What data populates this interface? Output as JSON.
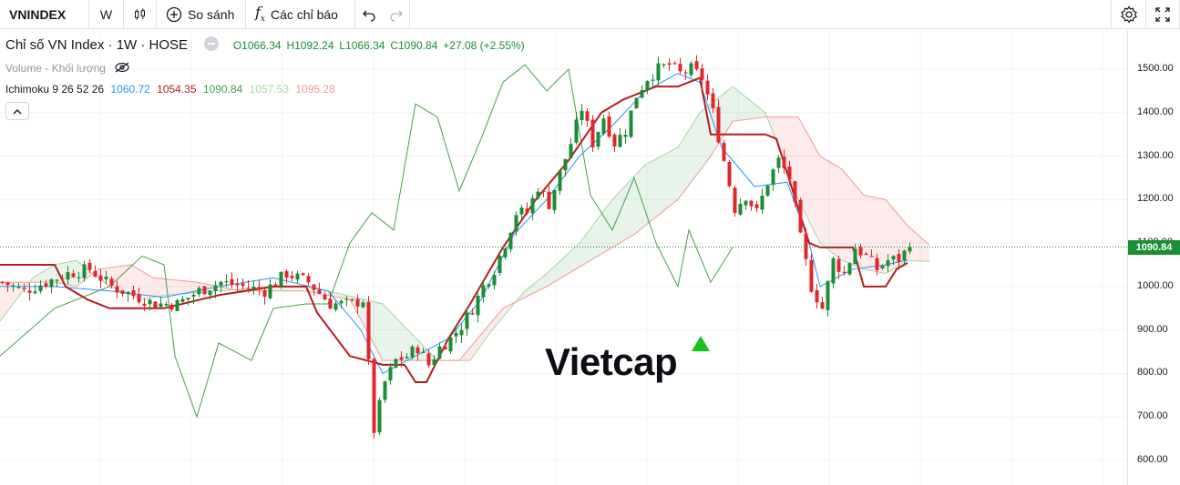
{
  "toolbar": {
    "symbol": "VNINDEX",
    "interval": "W",
    "compare_label": "So sánh",
    "indicators_label": "Các chỉ báo"
  },
  "legend": {
    "title": "Chỉ số VN Index · 1W · HOSE",
    "open": "O1066.34",
    "high": "H1092.24",
    "low": "L1066.34",
    "close": "C1090.84",
    "change": "+27.08 (+2.55%)",
    "volume_label": "Volume - Khối lượng",
    "ichimoku_label": "Ichimoku 9 26 52 26",
    "ichimoku_values": [
      "1060.72",
      "1054.35",
      "1090.84",
      "1057.53",
      "1095.28"
    ]
  },
  "watermark": "Vietcap",
  "colors": {
    "up": "#1a8e32",
    "down": "#e3262a",
    "conversion": "#2196f3",
    "base": "#b71c1c",
    "lagging": "#43a047",
    "span_a": "#a5d6a7",
    "span_b": "#ef9a9a",
    "green_text": "#1a8e32"
  },
  "chart_data": {
    "type": "candlestick",
    "symbol": "VNINDEX",
    "interval": "1W",
    "y_ticks": [
      "1500.00",
      "1400.00",
      "1300.00",
      "1200.00",
      "1100.00",
      "1000.00",
      "900.00",
      "800.00",
      "700.00",
      "600.00"
    ],
    "ylim": [
      575,
      1560
    ],
    "last_price": "1090.84",
    "close_path": [
      [
        0,
        1010
      ],
      [
        4,
        990
      ],
      [
        8,
        1010
      ],
      [
        12,
        1030
      ],
      [
        16,
        1040
      ],
      [
        20,
        1000
      ],
      [
        24,
        980
      ],
      [
        28,
        960
      ],
      [
        32,
        960
      ],
      [
        36,
        990
      ],
      [
        40,
        1010
      ],
      [
        44,
        1000
      ],
      [
        48,
        990
      ],
      [
        52,
        1030
      ],
      [
        56,
        1010
      ],
      [
        60,
        960
      ],
      [
        64,
        960
      ],
      [
        66,
        970
      ],
      [
        68,
        670
      ],
      [
        70,
        780
      ],
      [
        72,
        830
      ],
      [
        74,
        840
      ],
      [
        76,
        860
      ],
      [
        78,
        820
      ],
      [
        80,
        860
      ],
      [
        82,
        880
      ],
      [
        84,
        910
      ],
      [
        86,
        950
      ],
      [
        88,
        1000
      ],
      [
        90,
        1040
      ],
      [
        92,
        1100
      ],
      [
        94,
        1170
      ],
      [
        96,
        1170
      ],
      [
        98,
        1230
      ],
      [
        100,
        1190
      ],
      [
        102,
        1260
      ],
      [
        104,
        1330
      ],
      [
        106,
        1410
      ],
      [
        108,
        1330
      ],
      [
        110,
        1390
      ],
      [
        112,
        1330
      ],
      [
        114,
        1360
      ],
      [
        116,
        1440
      ],
      [
        118,
        1480
      ],
      [
        120,
        1500
      ],
      [
        122,
        1510
      ],
      [
        124,
        1490
      ],
      [
        126,
        1500
      ],
      [
        128,
        1480
      ],
      [
        130,
        1400
      ],
      [
        132,
        1290
      ],
      [
        134,
        1180
      ],
      [
        136,
        1210
      ],
      [
        138,
        1170
      ],
      [
        140,
        1240
      ],
      [
        142,
        1290
      ],
      [
        144,
        1250
      ],
      [
        146,
        1110
      ],
      [
        148,
        1000
      ],
      [
        150,
        950
      ],
      [
        152,
        1060
      ],
      [
        154,
        1030
      ],
      [
        156,
        1090
      ],
      [
        158,
        1070
      ],
      [
        160,
        1040
      ],
      [
        162,
        1060
      ],
      [
        164,
        1063
      ],
      [
        166,
        1091
      ]
    ],
    "conversion_line": [
      [
        0,
        1000
      ],
      [
        10,
        1000
      ],
      [
        20,
        990
      ],
      [
        30,
        975
      ],
      [
        40,
        1000
      ],
      [
        50,
        1020
      ],
      [
        60,
        990
      ],
      [
        66,
        900
      ],
      [
        70,
        800
      ],
      [
        76,
        840
      ],
      [
        82,
        880
      ],
      [
        88,
        970
      ],
      [
        94,
        1120
      ],
      [
        100,
        1200
      ],
      [
        106,
        1300
      ],
      [
        112,
        1370
      ],
      [
        118,
        1450
      ],
      [
        124,
        1490
      ],
      [
        128,
        1470
      ],
      [
        132,
        1320
      ],
      [
        138,
        1230
      ],
      [
        144,
        1240
      ],
      [
        148,
        1100
      ],
      [
        150,
        1000
      ],
      [
        156,
        1040
      ],
      [
        162,
        1050
      ],
      [
        166,
        1060.72
      ]
    ],
    "base_line": [
      [
        0,
        1050
      ],
      [
        10,
        1050
      ],
      [
        12,
        1000
      ],
      [
        16,
        970
      ],
      [
        20,
        950
      ],
      [
        30,
        950
      ],
      [
        40,
        980
      ],
      [
        50,
        1000
      ],
      [
        56,
        1000
      ],
      [
        58,
        940
      ],
      [
        64,
        840
      ],
      [
        70,
        820
      ],
      [
        74,
        820
      ],
      [
        76,
        780
      ],
      [
        78,
        780
      ],
      [
        82,
        880
      ],
      [
        86,
        960
      ],
      [
        92,
        1090
      ],
      [
        98,
        1200
      ],
      [
        104,
        1290
      ],
      [
        110,
        1400
      ],
      [
        114,
        1430
      ],
      [
        120,
        1460
      ],
      [
        124,
        1460
      ],
      [
        128,
        1480
      ],
      [
        130,
        1350
      ],
      [
        140,
        1350
      ],
      [
        142,
        1340
      ],
      [
        148,
        1100
      ],
      [
        150,
        1090
      ],
      [
        156,
        1090
      ],
      [
        158,
        1000
      ],
      [
        162,
        1000
      ],
      [
        164,
        1040
      ],
      [
        166,
        1054.35
      ]
    ],
    "lagging_span": [
      [
        0,
        840
      ],
      [
        10,
        950
      ],
      [
        20,
        1000
      ],
      [
        26,
        1070
      ],
      [
        30,
        1050
      ],
      [
        32,
        840
      ],
      [
        36,
        700
      ],
      [
        40,
        870
      ],
      [
        46,
        830
      ],
      [
        50,
        950
      ],
      [
        56,
        960
      ],
      [
        60,
        960
      ],
      [
        64,
        1100
      ],
      [
        68,
        1170
      ],
      [
        72,
        1130
      ],
      [
        76,
        1420
      ],
      [
        80,
        1390
      ],
      [
        84,
        1220
      ],
      [
        88,
        1340
      ],
      [
        92,
        1470
      ],
      [
        96,
        1510
      ],
      [
        100,
        1450
      ],
      [
        104,
        1500
      ],
      [
        108,
        1210
      ],
      [
        112,
        1130
      ],
      [
        116,
        1250
      ],
      [
        120,
        1100
      ],
      [
        124,
        1000
      ],
      [
        126,
        1130
      ],
      [
        130,
        1010
      ],
      [
        134,
        1090
      ]
    ],
    "leading_span_a": [
      [
        0,
        920
      ],
      [
        6,
        1020
      ],
      [
        10,
        1050
      ],
      [
        14,
        1060
      ],
      [
        20,
        1000
      ],
      [
        26,
        970
      ],
      [
        30,
        980
      ],
      [
        40,
        990
      ],
      [
        50,
        1000
      ],
      [
        56,
        1000
      ],
      [
        60,
        990
      ],
      [
        70,
        960
      ],
      [
        80,
        830
      ],
      [
        86,
        830
      ],
      [
        90,
        900
      ],
      [
        96,
        990
      ],
      [
        100,
        1030
      ],
      [
        106,
        1100
      ],
      [
        112,
        1200
      ],
      [
        118,
        1280
      ],
      [
        124,
        1320
      ],
      [
        128,
        1400
      ],
      [
        134,
        1460
      ],
      [
        140,
        1400
      ],
      [
        146,
        1200
      ],
      [
        150,
        1100
      ],
      [
        154,
        1060
      ],
      [
        158,
        1040
      ],
      [
        162,
        1030
      ],
      [
        166,
        1060
      ],
      [
        170,
        1057.53
      ]
    ],
    "leading_span_b": [
      [
        0,
        1010
      ],
      [
        10,
        1010
      ],
      [
        14,
        1000
      ],
      [
        18,
        1040
      ],
      [
        24,
        1050
      ],
      [
        28,
        1020
      ],
      [
        36,
        1010
      ],
      [
        44,
        990
      ],
      [
        50,
        990
      ],
      [
        56,
        990
      ],
      [
        60,
        980
      ],
      [
        64,
        970
      ],
      [
        70,
        830
      ],
      [
        76,
        830
      ],
      [
        84,
        830
      ],
      [
        92,
        950
      ],
      [
        100,
        1000
      ],
      [
        108,
        1060
      ],
      [
        116,
        1120
      ],
      [
        124,
        1200
      ],
      [
        130,
        1300
      ],
      [
        134,
        1380
      ],
      [
        140,
        1390
      ],
      [
        146,
        1390
      ],
      [
        150,
        1300
      ],
      [
        154,
        1270
      ],
      [
        158,
        1210
      ],
      [
        162,
        1200
      ],
      [
        166,
        1140
      ],
      [
        170,
        1095.28
      ]
    ]
  }
}
